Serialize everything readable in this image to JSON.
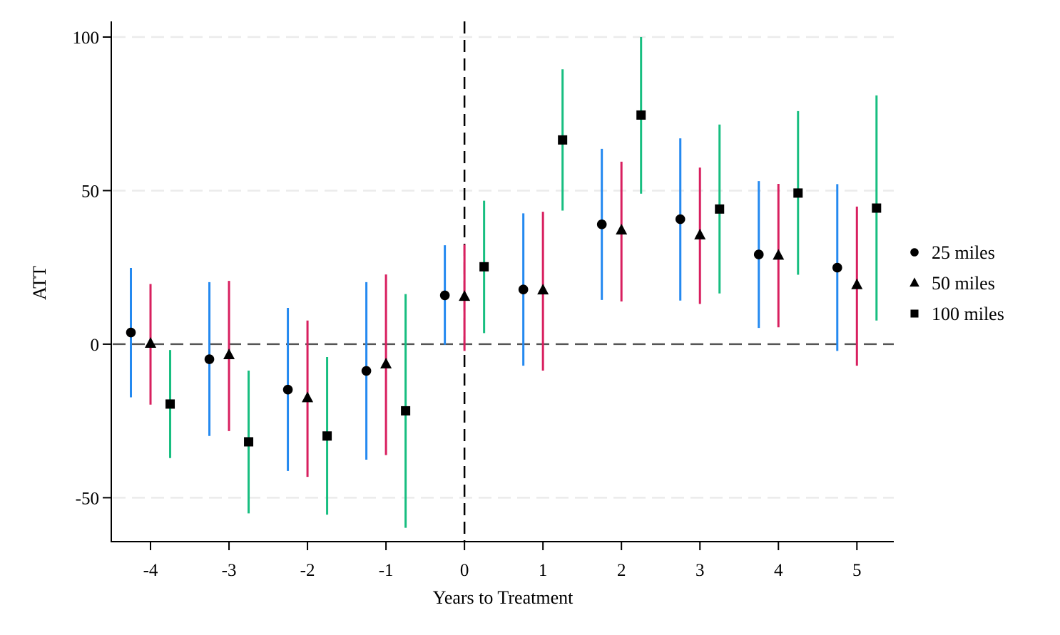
{
  "chart_data": {
    "type": "scatter",
    "subtype": "event-study point estimates with confidence intervals",
    "title": "",
    "xlabel": "Years to Treatment",
    "ylabel": "ATT",
    "xlim": [
      -4.5,
      5.47
    ],
    "ylim": [
      -64.3,
      105.1
    ],
    "x_ticks": [
      -4,
      -3,
      -2,
      -1,
      0,
      1,
      2,
      3,
      4,
      5
    ],
    "x_tick_labels": [
      "-4",
      "-3",
      "-2",
      "-1",
      "0",
      "1",
      "2",
      "3",
      "4",
      "5"
    ],
    "y_ticks": [
      -50,
      0,
      50,
      100
    ],
    "y_tick_labels": [
      "-50",
      "0",
      "50",
      "100"
    ],
    "grid": "horizontal dashed at y ticks",
    "reference_lines": {
      "horizontal_y": 0,
      "vertical_x": 0
    },
    "legend_position": "right",
    "categories": [
      -4,
      -3,
      -2,
      -1,
      0,
      1,
      2,
      3,
      4,
      5
    ],
    "series": [
      {
        "name": "25 miles",
        "marker": "circle",
        "ci_color": "#2489f0",
        "x_offset": -0.25,
        "values": [
          3.8,
          -4.9,
          -14.8,
          -8.7,
          15.9,
          17.8,
          39.0,
          40.7,
          29.2,
          24.9
        ],
        "ci_low": [
          -17.3,
          -29.9,
          -41.3,
          -37.6,
          -0.2,
          -7.0,
          14.4,
          14.2,
          5.3,
          -2.2
        ],
        "ci_high": [
          24.8,
          20.2,
          11.8,
          20.2,
          32.2,
          42.6,
          63.6,
          67.0,
          53.1,
          52.1
        ]
      },
      {
        "name": "50 miles",
        "marker": "triangle",
        "ci_color": "#d81f5f",
        "x_offset": 0,
        "values": [
          0.2,
          -3.5,
          -17.5,
          -6.5,
          15.5,
          17.6,
          37.1,
          35.5,
          28.9,
          19.3
        ],
        "ci_low": [
          -19.7,
          -28.3,
          -43.2,
          -36.1,
          -2.2,
          -8.6,
          13.9,
          13.1,
          5.5,
          -7.0
        ],
        "ci_high": [
          19.6,
          20.6,
          7.7,
          22.7,
          32.4,
          43.1,
          59.4,
          57.5,
          52.2,
          44.8
        ]
      },
      {
        "name": "100 miles",
        "marker": "square",
        "ci_color": "#17be80",
        "x_offset": 0.25,
        "values": [
          -19.5,
          -31.8,
          -29.9,
          -21.7,
          25.2,
          66.5,
          74.6,
          44.0,
          49.2,
          44.3
        ],
        "ci_low": [
          -37.1,
          -55.1,
          -55.5,
          -59.8,
          3.6,
          43.5,
          49.0,
          16.5,
          22.6,
          7.7
        ],
        "ci_high": [
          -1.9,
          -8.6,
          -4.2,
          16.3,
          46.7,
          89.5,
          100.0,
          71.5,
          75.9,
          81.0
        ]
      }
    ],
    "colors": {
      "marker": "#000000",
      "axis": "#000000",
      "grid": "#ebebeb",
      "zero_line": "#555555",
      "vertical_line": "#000000"
    }
  }
}
